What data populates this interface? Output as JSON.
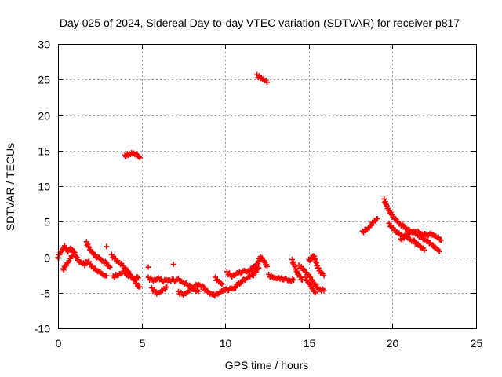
{
  "chart_data": {
    "type": "scatter",
    "title": "Day 025 of 2024, Sidereal Day-to-day VTEC variation (SDTVAR) for receiver p817",
    "xlabel": "GPS time / hours",
    "ylabel": "SDTVAR / TECUs",
    "xlim": [
      0,
      25
    ],
    "ylim": [
      -10,
      30
    ],
    "xticks": [
      0,
      5,
      10,
      15,
      20,
      25
    ],
    "yticks": [
      -10,
      -5,
      0,
      5,
      10,
      15,
      20,
      25,
      30
    ],
    "grid": true,
    "marker": "+",
    "color": "#ff0000",
    "series": [
      {
        "name": "SDTVAR",
        "segments": [
          [
            [
              0.0,
              -0.2
            ],
            [
              0.2,
              1.0
            ],
            [
              0.4,
              1.5
            ],
            [
              0.6,
              0.8
            ],
            [
              0.8,
              1.2
            ],
            [
              1.0,
              0.5
            ],
            [
              1.2,
              -0.5
            ],
            [
              1.4,
              -0.8
            ],
            [
              1.6,
              -1.0
            ],
            [
              1.8,
              -0.5
            ],
            [
              2.0,
              -1.2
            ],
            [
              2.3,
              -1.8
            ],
            [
              2.6,
              -2.2
            ],
            [
              2.9,
              -2.6
            ]
          ],
          [
            [
              0.3,
              -1.8
            ],
            [
              0.5,
              -1.0
            ],
            [
              0.7,
              -0.3
            ],
            [
              0.9,
              0.4
            ]
          ],
          [
            [
              1.7,
              2.0
            ],
            [
              1.9,
              1.2
            ],
            [
              2.1,
              0.5
            ],
            [
              2.3,
              0.0
            ],
            [
              2.6,
              -0.4
            ],
            [
              2.9,
              -0.9
            ],
            [
              3.1,
              -1.4
            ]
          ],
          [
            [
              3.2,
              0.2
            ],
            [
              3.5,
              -0.4
            ],
            [
              3.8,
              -1.0
            ],
            [
              4.1,
              -1.9
            ],
            [
              4.4,
              -2.7
            ],
            [
              4.7,
              -3.8
            ],
            [
              4.9,
              -4.2
            ]
          ],
          [
            [
              3.3,
              -2.8
            ],
            [
              3.6,
              -2.4
            ],
            [
              3.9,
              -2.1
            ],
            [
              4.2,
              -2.6
            ],
            [
              4.5,
              -3.0
            ],
            [
              4.8,
              -2.9
            ]
          ],
          [
            [
              4.0,
              14.2
            ],
            [
              4.2,
              14.5
            ],
            [
              4.4,
              14.6
            ],
            [
              4.6,
              14.5
            ],
            [
              4.8,
              14.2
            ],
            [
              4.9,
              14.0
            ]
          ],
          [
            [
              5.4,
              -3.0
            ],
            [
              5.7,
              -3.2
            ],
            [
              6.0,
              -3.0
            ],
            [
              6.3,
              -3.4
            ],
            [
              6.6,
              -3.2
            ],
            [
              6.9,
              -3.3
            ],
            [
              7.2,
              -3.1
            ],
            [
              7.5,
              -3.6
            ],
            [
              7.8,
              -4.0
            ],
            [
              8.1,
              -4.4
            ],
            [
              8.4,
              -4.8
            ]
          ],
          [
            [
              5.6,
              -4.5
            ],
            [
              5.9,
              -5.0
            ],
            [
              6.2,
              -4.8
            ],
            [
              6.5,
              -4.2
            ]
          ],
          [
            [
              7.2,
              -5.0
            ],
            [
              7.5,
              -5.2
            ],
            [
              7.8,
              -4.8
            ],
            [
              8.1,
              -4.3
            ],
            [
              8.4,
              -3.8
            ],
            [
              8.7,
              -4.3
            ],
            [
              9.0,
              -5.0
            ],
            [
              9.3,
              -5.3
            ]
          ],
          [
            [
              9.3,
              -5.4
            ],
            [
              9.6,
              -5.0
            ],
            [
              9.9,
              -4.6
            ],
            [
              10.2,
              -4.6
            ],
            [
              10.5,
              -4.4
            ],
            [
              10.8,
              -3.8
            ],
            [
              11.1,
              -3.2
            ],
            [
              11.4,
              -2.8
            ],
            [
              11.7,
              -2.4
            ],
            [
              12.0,
              -1.5
            ]
          ],
          [
            [
              9.4,
              -3.0
            ],
            [
              9.8,
              -3.8
            ]
          ],
          [
            [
              10.1,
              -2.2
            ],
            [
              10.4,
              -2.6
            ],
            [
              10.7,
              -2.3
            ],
            [
              11.0,
              -2.1
            ],
            [
              11.3,
              -2.0
            ],
            [
              11.6,
              -1.7
            ],
            [
              11.9,
              -1.0
            ],
            [
              12.1,
              0.0
            ],
            [
              12.3,
              -0.5
            ],
            [
              12.5,
              -1.3
            ]
          ],
          [
            [
              11.9,
              25.5
            ],
            [
              12.1,
              25.3
            ],
            [
              12.3,
              25.0
            ],
            [
              12.5,
              24.6
            ]
          ],
          [
            [
              12.6,
              -2.6
            ],
            [
              12.9,
              -2.8
            ],
            [
              13.2,
              -3.0
            ],
            [
              13.5,
              -3.1
            ],
            [
              13.8,
              -3.3
            ],
            [
              14.1,
              -3.2
            ]
          ],
          [
            [
              14.0,
              -0.5
            ],
            [
              14.2,
              -1.5
            ],
            [
              14.4,
              -2.6
            ],
            [
              14.6,
              -3.2
            ]
          ],
          [
            [
              14.4,
              -1.3
            ],
            [
              14.7,
              -1.7
            ],
            [
              15.0,
              -2.6
            ],
            [
              15.3,
              -3.8
            ],
            [
              15.6,
              -4.5
            ],
            [
              15.9,
              -4.7
            ]
          ],
          [
            [
              15.0,
              -0.5
            ],
            [
              15.3,
              0.3
            ],
            [
              15.5,
              -1.3
            ],
            [
              15.7,
              -2.2
            ],
            [
              15.9,
              -2.6
            ]
          ],
          [
            [
              14.8,
              -3.0
            ],
            [
              15.1,
              -4.0
            ],
            [
              15.4,
              -5.0
            ]
          ],
          [
            [
              18.2,
              3.5
            ],
            [
              18.5,
              4.0
            ],
            [
              18.8,
              4.8
            ],
            [
              19.1,
              5.4
            ]
          ],
          [
            [
              19.5,
              8.0
            ],
            [
              19.7,
              7.0
            ],
            [
              19.9,
              6.2
            ],
            [
              20.1,
              5.4
            ],
            [
              20.4,
              4.8
            ],
            [
              20.7,
              4.2
            ],
            [
              21.0,
              3.8
            ],
            [
              21.3,
              3.4
            ],
            [
              21.6,
              3.0
            ],
            [
              21.9,
              2.6
            ],
            [
              22.2,
              2.1
            ],
            [
              22.5,
              1.5
            ],
            [
              22.8,
              0.8
            ]
          ],
          [
            [
              19.8,
              4.6
            ],
            [
              20.1,
              3.9
            ],
            [
              20.4,
              3.3
            ],
            [
              20.7,
              2.9
            ],
            [
              21.0,
              2.6
            ],
            [
              21.3,
              2.2
            ],
            [
              21.6,
              1.6
            ],
            [
              21.9,
              1.0
            ]
          ],
          [
            [
              20.5,
              2.4
            ],
            [
              20.8,
              3.2
            ],
            [
              21.1,
              3.5
            ],
            [
              21.4,
              3.6
            ],
            [
              21.7,
              3.3
            ],
            [
              22.0,
              3.1
            ],
            [
              22.3,
              3.3
            ],
            [
              22.6,
              2.9
            ],
            [
              22.9,
              2.4
            ]
          ]
        ],
        "isolated": [
          [
            2.9,
            1.5
          ],
          [
            5.4,
            -1.4
          ],
          [
            6.9,
            -1.0
          ],
          [
            4.4,
            -2.8
          ]
        ]
      }
    ]
  }
}
